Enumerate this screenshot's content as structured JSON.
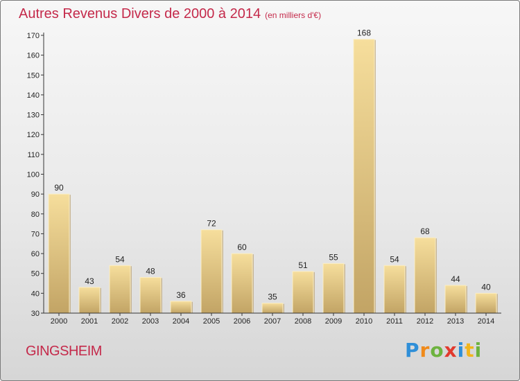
{
  "header": {
    "title": "Autres Revenus Divers de 2000 à 2014",
    "subtitle": "(en milliers d'€)"
  },
  "footer": {
    "place": "GINGSHEIM",
    "brand": "Proxiti"
  },
  "colors": {
    "title": "#c4294a",
    "bar_light": "#f5dc9a",
    "bar_dark": "#c4a666",
    "axis": "#333333"
  },
  "chart_data": {
    "type": "bar",
    "categories": [
      "2000",
      "2001",
      "2002",
      "2003",
      "2004",
      "2005",
      "2006",
      "2007",
      "2008",
      "2009",
      "2010",
      "2011",
      "2012",
      "2013",
      "2014"
    ],
    "values": [
      90,
      43,
      54,
      48,
      36,
      72,
      60,
      35,
      51,
      55,
      168,
      54,
      68,
      44,
      40
    ],
    "ylim": [
      30,
      170
    ],
    "yticks": [
      30,
      40,
      50,
      60,
      70,
      80,
      90,
      100,
      110,
      120,
      130,
      140,
      150,
      160,
      170
    ],
    "grid": false,
    "legend": "none"
  }
}
